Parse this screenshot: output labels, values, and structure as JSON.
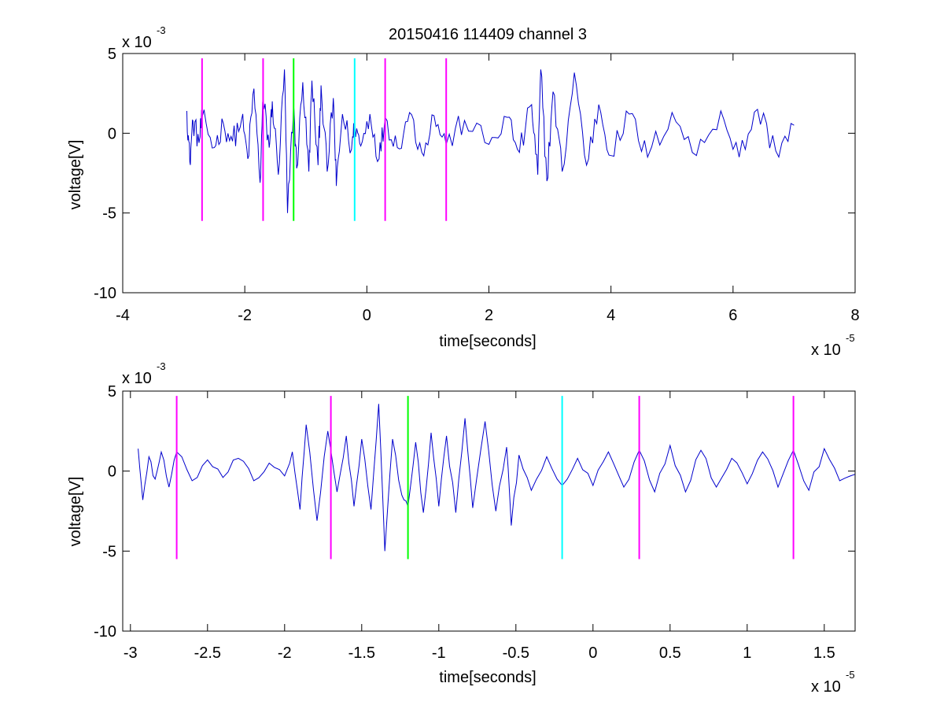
{
  "chart_data": [
    {
      "type": "line",
      "title": "20150416 114409 channel 3",
      "xlabel": "time[seconds]",
      "ylabel": "voltage[V]",
      "x_exponent_label": "x 10",
      "x_exponent": "-5",
      "y_exponent_label": "x 10",
      "y_exponent": "-3",
      "xlim": [
        -4,
        8
      ],
      "ylim": [
        -10,
        5
      ],
      "x_ticks": [
        -4,
        -2,
        0,
        2,
        4,
        6,
        8
      ],
      "x_tick_labels": [
        "-4",
        "-2",
        "0",
        "2",
        "4",
        "6",
        "8"
      ],
      "y_ticks": [
        -10,
        -5,
        0,
        5
      ],
      "y_tick_labels": [
        "-10",
        "-5",
        "0",
        "5"
      ],
      "grid": false,
      "signal": {
        "color": "#0000cc",
        "x_start": -2.95,
        "x_end": 7.0,
        "noisy": true,
        "anchors": [
          [
            -2.95,
            1.4
          ],
          [
            -2.9,
            -1.8
          ],
          [
            -2.85,
            0.8
          ],
          [
            -2.75,
            -0.6
          ],
          [
            -2.7,
            1.0
          ],
          [
            -2.5,
            -0.9
          ],
          [
            -2.35,
            0.6
          ],
          [
            -2.2,
            -0.5
          ],
          [
            -2.05,
            0.9
          ],
          [
            -1.95,
            -1.6
          ],
          [
            -1.85,
            2.8
          ],
          [
            -1.75,
            -3.1
          ],
          [
            -1.7,
            2.2
          ],
          [
            -1.6,
            -0.9
          ],
          [
            -1.55,
            2.0
          ],
          [
            -1.45,
            -2.6
          ],
          [
            -1.35,
            4.0
          ],
          [
            -1.3,
            -5.0
          ],
          [
            -1.2,
            1.8
          ],
          [
            -1.15,
            -2.2
          ],
          [
            -1.05,
            3.2
          ],
          [
            -0.95,
            -2.4
          ],
          [
            -0.9,
            3.3
          ],
          [
            -0.8,
            -2.0
          ],
          [
            -0.75,
            3.0
          ],
          [
            -0.65,
            -2.4
          ],
          [
            -0.55,
            2.2
          ],
          [
            -0.5,
            -3.3
          ],
          [
            -0.4,
            1.2
          ],
          [
            -0.25,
            -1.0
          ],
          [
            -0.2,
            0.6
          ],
          [
            -0.1,
            -0.8
          ],
          [
            0.05,
            1.2
          ],
          [
            0.2,
            -1.6
          ],
          [
            0.3,
            1.0
          ],
          [
            0.5,
            -0.9
          ],
          [
            0.7,
            1.3
          ],
          [
            0.9,
            -1.2
          ],
          [
            1.1,
            1.1
          ],
          [
            1.3,
            -0.7
          ],
          [
            1.6,
            0.8
          ],
          [
            2.0,
            -0.7
          ],
          [
            2.3,
            1.0
          ],
          [
            2.5,
            -1.2
          ],
          [
            2.7,
            1.8
          ],
          [
            2.8,
            -2.6
          ],
          [
            2.85,
            4.0
          ],
          [
            2.95,
            -3.0
          ],
          [
            3.05,
            2.6
          ],
          [
            3.2,
            -2.4
          ],
          [
            3.4,
            3.8
          ],
          [
            3.6,
            -2.0
          ],
          [
            3.8,
            1.8
          ],
          [
            4.0,
            -1.4
          ],
          [
            4.3,
            1.2
          ],
          [
            4.6,
            -1.5
          ],
          [
            5.0,
            1.3
          ],
          [
            5.4,
            -1.4
          ],
          [
            5.8,
            1.4
          ],
          [
            6.1,
            -1.5
          ],
          [
            6.4,
            1.5
          ],
          [
            6.7,
            -1.1
          ],
          [
            7.0,
            0.5
          ]
        ]
      },
      "markers": [
        {
          "x": -2.7,
          "color": "#ff00ff"
        },
        {
          "x": -1.7,
          "color": "#ff00ff"
        },
        {
          "x": -1.2,
          "color": "#00ff00"
        },
        {
          "x": -0.2,
          "color": "#00ffff"
        },
        {
          "x": 0.3,
          "color": "#ff00ff"
        },
        {
          "x": 1.3,
          "color": "#ff00ff"
        }
      ],
      "marker_range": [
        -5.5,
        4.7
      ]
    },
    {
      "type": "line",
      "title": "",
      "xlabel": "time[seconds]",
      "ylabel": "voltage[V]",
      "x_exponent_label": "x 10",
      "x_exponent": "-5",
      "y_exponent_label": "x 10",
      "y_exponent": "-3",
      "xlim": [
        -3.05,
        1.7
      ],
      "ylim": [
        -10,
        5
      ],
      "x_ticks": [
        -3,
        -2.5,
        -2,
        -1.5,
        -1,
        -0.5,
        0,
        0.5,
        1,
        1.5
      ],
      "x_tick_labels": [
        "-3",
        "-2.5",
        "-2",
        "-1.5",
        "-1",
        "-0.5",
        "0",
        "0.5",
        "1",
        "1.5"
      ],
      "y_ticks": [
        -10,
        -5,
        0,
        5
      ],
      "y_tick_labels": [
        "-10",
        "-5",
        "0",
        "5"
      ],
      "grid": false,
      "signal": {
        "color": "#0000cc",
        "x_start": -2.95,
        "x_end": 1.7,
        "noisy": false,
        "anchors": [
          [
            -2.95,
            1.4
          ],
          [
            -2.92,
            -1.8
          ],
          [
            -2.88,
            0.9
          ],
          [
            -2.84,
            -0.5
          ],
          [
            -2.8,
            1.2
          ],
          [
            -2.75,
            -1.0
          ],
          [
            -2.7,
            1.2
          ],
          [
            -2.6,
            -0.6
          ],
          [
            -2.5,
            0.7
          ],
          [
            -2.4,
            -0.4
          ],
          [
            -2.3,
            0.8
          ],
          [
            -2.2,
            -0.6
          ],
          [
            -2.1,
            0.5
          ],
          [
            -2.0,
            -0.3
          ],
          [
            -1.95,
            1.2
          ],
          [
            -1.9,
            -2.4
          ],
          [
            -1.86,
            2.9
          ],
          [
            -1.79,
            -3.1
          ],
          [
            -1.72,
            2.5
          ],
          [
            -1.66,
            -1.3
          ],
          [
            -1.6,
            2.2
          ],
          [
            -1.55,
            -2.2
          ],
          [
            -1.5,
            2.0
          ],
          [
            -1.44,
            -2.4
          ],
          [
            -1.39,
            4.2
          ],
          [
            -1.35,
            -5.0
          ],
          [
            -1.3,
            2.0
          ],
          [
            -1.24,
            -1.5
          ],
          [
            -1.2,
            -2.2
          ],
          [
            -1.15,
            1.8
          ],
          [
            -1.1,
            -2.6
          ],
          [
            -1.05,
            2.4
          ],
          [
            -1.0,
            -2.2
          ],
          [
            -0.95,
            2.2
          ],
          [
            -0.89,
            -2.6
          ],
          [
            -0.83,
            3.3
          ],
          [
            -0.78,
            -2.3
          ],
          [
            -0.7,
            3.1
          ],
          [
            -0.63,
            -2.5
          ],
          [
            -0.56,
            1.5
          ],
          [
            -0.53,
            -3.4
          ],
          [
            -0.48,
            1.0
          ],
          [
            -0.4,
            -1.2
          ],
          [
            -0.3,
            0.9
          ],
          [
            -0.2,
            -0.9
          ],
          [
            -0.1,
            0.8
          ],
          [
            0.0,
            -0.9
          ],
          [
            0.1,
            1.2
          ],
          [
            0.2,
            -1.0
          ],
          [
            0.3,
            1.3
          ],
          [
            0.4,
            -1.3
          ],
          [
            0.5,
            1.6
          ],
          [
            0.6,
            -1.3
          ],
          [
            0.7,
            1.3
          ],
          [
            0.8,
            -1.0
          ],
          [
            0.9,
            0.8
          ],
          [
            1.0,
            -0.8
          ],
          [
            1.1,
            1.2
          ],
          [
            1.2,
            -1.0
          ],
          [
            1.3,
            1.3
          ],
          [
            1.4,
            -1.2
          ],
          [
            1.5,
            1.4
          ],
          [
            1.6,
            -0.6
          ],
          [
            1.7,
            -0.2
          ]
        ]
      },
      "markers": [
        {
          "x": -2.7,
          "color": "#ff00ff"
        },
        {
          "x": -1.7,
          "color": "#ff00ff"
        },
        {
          "x": -1.2,
          "color": "#00ff00"
        },
        {
          "x": -0.2,
          "color": "#00ffff"
        },
        {
          "x": 0.3,
          "color": "#ff00ff"
        },
        {
          "x": 1.3,
          "color": "#ff00ff"
        }
      ],
      "marker_range": [
        -5.5,
        4.7
      ]
    }
  ]
}
